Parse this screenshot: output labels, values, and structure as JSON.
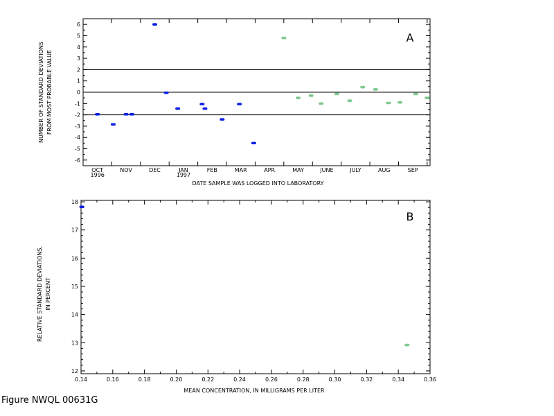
{
  "caption": "Figure NWQL 00631G",
  "colors": {
    "series_1996_1997": "#0a1ee6",
    "series_1997_later": "#7fc98f",
    "axis": "#000000"
  },
  "chart_data": [
    {
      "id": "A",
      "type": "scatter",
      "panel_label": "A",
      "xlabel": "DATE SAMPLE WAS LOGGED INTO LABORATORY",
      "ylabel": [
        "NUMBER OF STANDARD DEVIATIONS",
        "FROM MOST PROBABLE VALUE"
      ],
      "ylim": [
        -6.5,
        6.5
      ],
      "yticks": [
        "6",
        "5",
        "4",
        "3",
        "2",
        "1",
        "0",
        "-1",
        "-2",
        "-3",
        "-4",
        "-5",
        "-6"
      ],
      "xlim": [
        0,
        12.1
      ],
      "xticks": [
        {
          "label": "OCT",
          "sublabel": "1996",
          "x": 0.5
        },
        {
          "label": "NOV",
          "x": 1.5
        },
        {
          "label": "DEC",
          "x": 2.5
        },
        {
          "label": "JAN",
          "sublabel": "1997",
          "x": 3.5
        },
        {
          "label": "FEB",
          "x": 4.5
        },
        {
          "label": "MAR",
          "x": 5.5
        },
        {
          "label": "APR",
          "x": 6.5
        },
        {
          "label": "MAY",
          "x": 7.5
        },
        {
          "label": "JUNE",
          "x": 8.5
        },
        {
          "label": "JULY",
          "x": 9.5
        },
        {
          "label": "AUG",
          "x": 10.5
        },
        {
          "label": "SEP",
          "x": 11.5
        }
      ],
      "reference_lines": [
        2,
        0,
        -2
      ],
      "series": [
        {
          "color": "#0a1ee6",
          "points": [
            [
              0.5,
              -1.95
            ],
            [
              1.05,
              -2.85
            ],
            [
              1.5,
              -1.95
            ],
            [
              1.7,
              -1.95
            ],
            [
              2.5,
              6.0
            ],
            [
              2.9,
              -0.05
            ],
            [
              3.3,
              -1.45
            ],
            [
              4.15,
              -1.05
            ],
            [
              4.25,
              -1.45
            ],
            [
              4.85,
              -2.4
            ],
            [
              5.45,
              -1.05
            ],
            [
              5.95,
              -4.5
            ]
          ]
        },
        {
          "color": "#7fc98f",
          "points": [
            [
              7.0,
              4.8
            ],
            [
              7.5,
              -0.5
            ],
            [
              7.95,
              -0.3
            ],
            [
              8.3,
              -1.0
            ],
            [
              8.85,
              -0.15
            ],
            [
              9.3,
              -0.75
            ],
            [
              9.75,
              0.45
            ],
            [
              10.2,
              0.25
            ],
            [
              10.65,
              -0.95
            ],
            [
              11.05,
              -0.9
            ],
            [
              11.6,
              -0.15
            ],
            [
              12.0,
              -0.5
            ]
          ]
        }
      ]
    },
    {
      "id": "B",
      "type": "scatter",
      "panel_label": "B",
      "xlabel": "MEAN CONCENTRATION, IN MILLIGRAMS PER LITER",
      "ylabel": [
        "RELATIVE STANDARD DEVIATIONS,",
        "IN PERCENT"
      ],
      "xlim": [
        0.14,
        0.36
      ],
      "ylim": [
        11.9,
        18.05
      ],
      "xticks": [
        "0.14",
        "0.16",
        "0.18",
        "0.20",
        "0.22",
        "0.24",
        "0.26",
        "0.28",
        "0.30",
        "0.32",
        "0.34",
        "0.36"
      ],
      "yticks": [
        "18",
        "17",
        "16",
        "15",
        "14",
        "13",
        "12"
      ],
      "series": [
        {
          "color": "#0a1ee6",
          "points": [
            [
              0.1405,
              17.82
            ]
          ]
        },
        {
          "color": "#7fc98f",
          "points": [
            [
              0.3455,
              12.92
            ]
          ]
        }
      ]
    }
  ]
}
